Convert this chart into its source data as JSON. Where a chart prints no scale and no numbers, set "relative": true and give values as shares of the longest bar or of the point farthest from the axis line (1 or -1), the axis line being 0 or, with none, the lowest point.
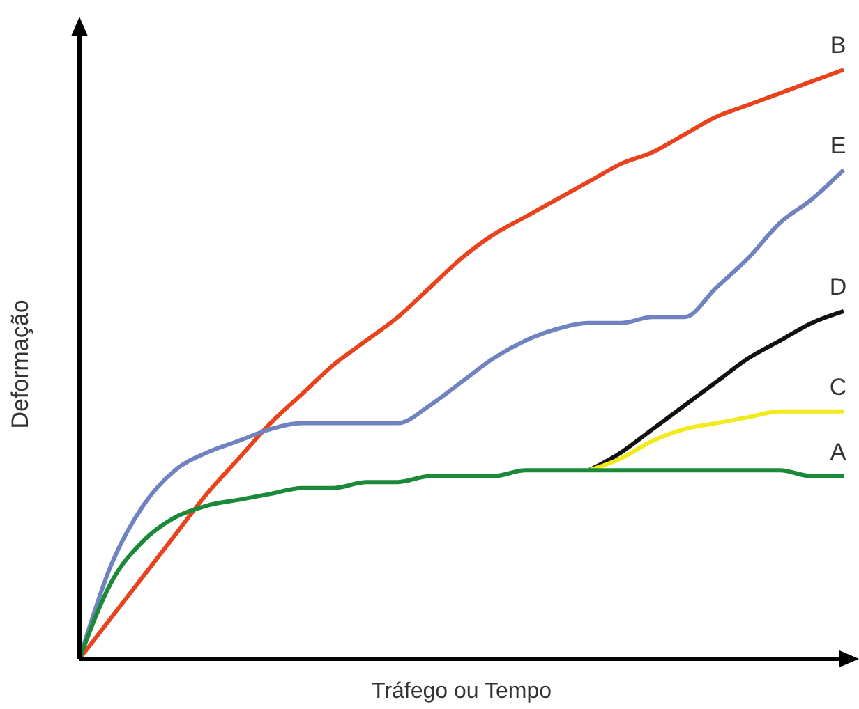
{
  "chart_data": {
    "type": "line",
    "relative": true,
    "xlabel": "Tráfego ou Tempo",
    "ylabel": "Deformação",
    "legend": false,
    "grid": false,
    "marker": "none",
    "line_style": "solid",
    "categories": [
      null,
      null,
      null,
      null,
      null,
      null,
      null,
      null,
      null,
      null,
      null,
      null,
      null,
      null,
      null,
      null,
      null,
      null,
      null,
      null,
      null,
      null,
      null,
      null,
      null
    ],
    "series": [
      {
        "name": "B",
        "color": "#e8431c",
        "values": [
          0,
          0.07,
          0.14,
          0.21,
          0.28,
          0.34,
          0.4,
          0.45,
          0.5,
          0.54,
          0.58,
          0.63,
          0.68,
          0.72,
          0.75,
          0.78,
          0.81,
          0.84,
          0.86,
          0.89,
          0.92,
          0.94,
          0.96,
          0.98,
          1
        ]
      },
      {
        "name": "E",
        "color": "#6f83c0",
        "values": [
          0,
          0.16,
          0.26,
          0.32,
          0.35,
          0.37,
          0.39,
          0.4,
          0.4,
          0.4,
          0.4,
          0.43,
          0.47,
          0.51,
          0.54,
          0.56,
          0.57,
          0.57,
          0.58,
          0.58,
          0.63,
          0.68,
          0.74,
          0.78,
          0.83
        ]
      },
      {
        "name": "D",
        "color": "#111111",
        "values": [
          null,
          null,
          null,
          null,
          null,
          null,
          null,
          null,
          null,
          null,
          null,
          null,
          null,
          null,
          null,
          null,
          0.32,
          0.35,
          0.39,
          0.43,
          0.47,
          0.51,
          0.54,
          0.57,
          0.59
        ]
      },
      {
        "name": "C",
        "color": "#f2ea1a",
        "values": [
          null,
          null,
          null,
          null,
          null,
          null,
          null,
          null,
          null,
          null,
          null,
          null,
          null,
          null,
          null,
          null,
          0.32,
          0.34,
          0.37,
          0.39,
          0.4,
          0.41,
          0.42,
          0.42,
          0.42
        ]
      },
      {
        "name": "A",
        "color": "#1a8a3a",
        "values": [
          0,
          0.13,
          0.2,
          0.24,
          0.26,
          0.27,
          0.28,
          0.29,
          0.29,
          0.3,
          0.3,
          0.31,
          0.31,
          0.31,
          0.32,
          0.32,
          0.32,
          0.32,
          0.32,
          0.32,
          0.32,
          0.32,
          0.32,
          0.31,
          0.31
        ]
      }
    ]
  }
}
